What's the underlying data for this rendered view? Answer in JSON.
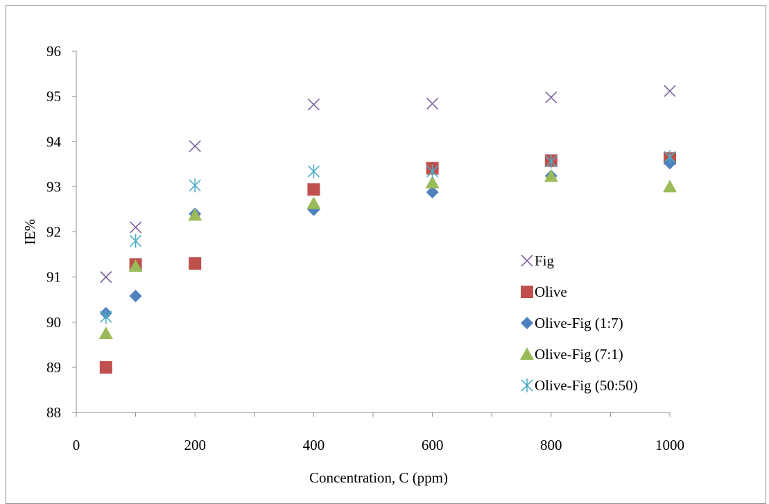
{
  "chart_data": {
    "type": "scatter",
    "title": "",
    "xlabel": "Concentration, C (ppm)",
    "ylabel": "IE%",
    "xlim": [
      0,
      1000
    ],
    "ylim": [
      88,
      96
    ],
    "x_ticks": [
      0,
      200,
      400,
      600,
      800,
      1000
    ],
    "y_ticks": [
      88,
      89,
      90,
      91,
      92,
      93,
      94,
      95,
      96
    ],
    "x_scale": "categorical-positions",
    "category_positions": {
      "50": 0.5,
      "100": 1,
      "200": 2,
      "400": 4,
      "600": 6,
      "800": 8,
      "1000": 10
    },
    "grid": false,
    "legend_position": "right",
    "series": [
      {
        "name": "Fig",
        "marker": "x",
        "color": "#7d60a0",
        "points": [
          [
            50,
            91.0
          ],
          [
            100,
            92.1
          ],
          [
            200,
            93.9
          ],
          [
            400,
            94.82
          ],
          [
            600,
            94.84
          ],
          [
            800,
            94.98
          ],
          [
            1000,
            95.12
          ]
        ]
      },
      {
        "name": "Olive",
        "marker": "square",
        "color": "#c0504d",
        "points": [
          [
            50,
            89.0
          ],
          [
            100,
            91.28
          ],
          [
            200,
            91.3
          ],
          [
            400,
            92.94
          ],
          [
            600,
            93.41
          ],
          [
            800,
            93.58
          ],
          [
            1000,
            93.63
          ]
        ]
      },
      {
        "name": "Olive-Fig (1:7)",
        "marker": "diamond",
        "color": "#4f81bd",
        "points": [
          [
            50,
            90.2
          ],
          [
            100,
            90.58
          ],
          [
            200,
            92.4
          ],
          [
            400,
            92.49
          ],
          [
            600,
            92.88
          ],
          [
            800,
            93.24
          ],
          [
            1000,
            93.52
          ]
        ]
      },
      {
        "name": "Olive-Fig (7:1)",
        "marker": "triangle",
        "color": "#9bbb59",
        "points": [
          [
            50,
            89.75
          ],
          [
            100,
            91.24
          ],
          [
            200,
            92.37
          ],
          [
            400,
            92.63
          ],
          [
            600,
            93.09
          ],
          [
            800,
            93.23
          ],
          [
            1000,
            93.0
          ]
        ]
      },
      {
        "name": "Olive-Fig (50:50)",
        "marker": "asterisk",
        "color": "#4bacc6",
        "points": [
          [
            50,
            90.12
          ],
          [
            100,
            91.8
          ],
          [
            200,
            93.03
          ],
          [
            400,
            93.34
          ],
          [
            600,
            93.34
          ],
          [
            800,
            93.56
          ],
          [
            1000,
            93.66
          ]
        ]
      }
    ]
  }
}
